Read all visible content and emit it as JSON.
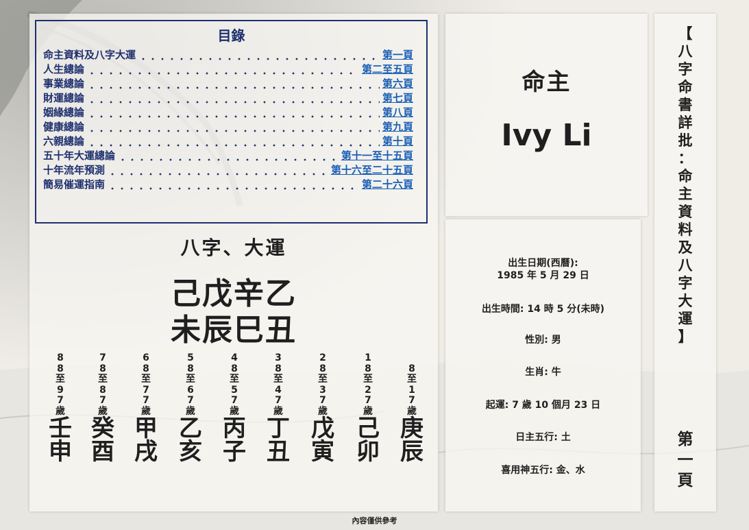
{
  "toc": {
    "title": "目錄",
    "items": [
      {
        "label": "命主資料及八字大運",
        "page": "第一頁"
      },
      {
        "label": "人生總論",
        "page": "第二至五頁"
      },
      {
        "label": "事業總論",
        "page": "第六頁"
      },
      {
        "label": "財運總論",
        "page": "第七頁"
      },
      {
        "label": "姻緣總論",
        "page": "第八頁"
      },
      {
        "label": "健康總論",
        "page": "第九頁"
      },
      {
        "label": "六親總論",
        "page": "第十頁"
      },
      {
        "label": "五十年大運總論",
        "page": "第十一至十五頁"
      },
      {
        "label": "十年流年預測",
        "page": "第十六至二十五頁"
      },
      {
        "label": "簡易催運指南",
        "page": "第二十六頁"
      }
    ]
  },
  "bazi": {
    "heading": "八字、大運",
    "stems": "己戊辛乙",
    "branches": "未辰巳丑"
  },
  "dayun": [
    {
      "age": "88至97歲",
      "stem": "壬",
      "branch": "申"
    },
    {
      "age": "78至87歲",
      "stem": "癸",
      "branch": "酉"
    },
    {
      "age": "68至77歲",
      "stem": "甲",
      "branch": "戌"
    },
    {
      "age": "58至67歲",
      "stem": "乙",
      "branch": "亥"
    },
    {
      "age": "48至57歲",
      "stem": "丙",
      "branch": "子"
    },
    {
      "age": "38至47歲",
      "stem": "丁",
      "branch": "丑"
    },
    {
      "age": "28至37歲",
      "stem": "戊",
      "branch": "寅"
    },
    {
      "age": "18至27歲",
      "stem": "己",
      "branch": "卯"
    },
    {
      "age": "8至17歲",
      "stem": "庚",
      "branch": "辰"
    }
  ],
  "owner": {
    "label": "命主",
    "name": "Ivy Li"
  },
  "info": {
    "birth_date_label": "出生日期(西曆):",
    "birth_date": "1985 年 5 月 29 日",
    "birth_time": "出生時間: 14 時 5 分(未時)",
    "gender": "性別: 男",
    "zodiac": "生肖: 牛",
    "qiyun": "起運: 7 歲 10 個月 23 日",
    "day_master": "日主五行: 土",
    "favorable": "喜用神五行: 金、水"
  },
  "side": {
    "title": "【八字命書詳批：命主資料及八字大運】",
    "page": "第一頁"
  },
  "footer": "內容僅供參考"
}
